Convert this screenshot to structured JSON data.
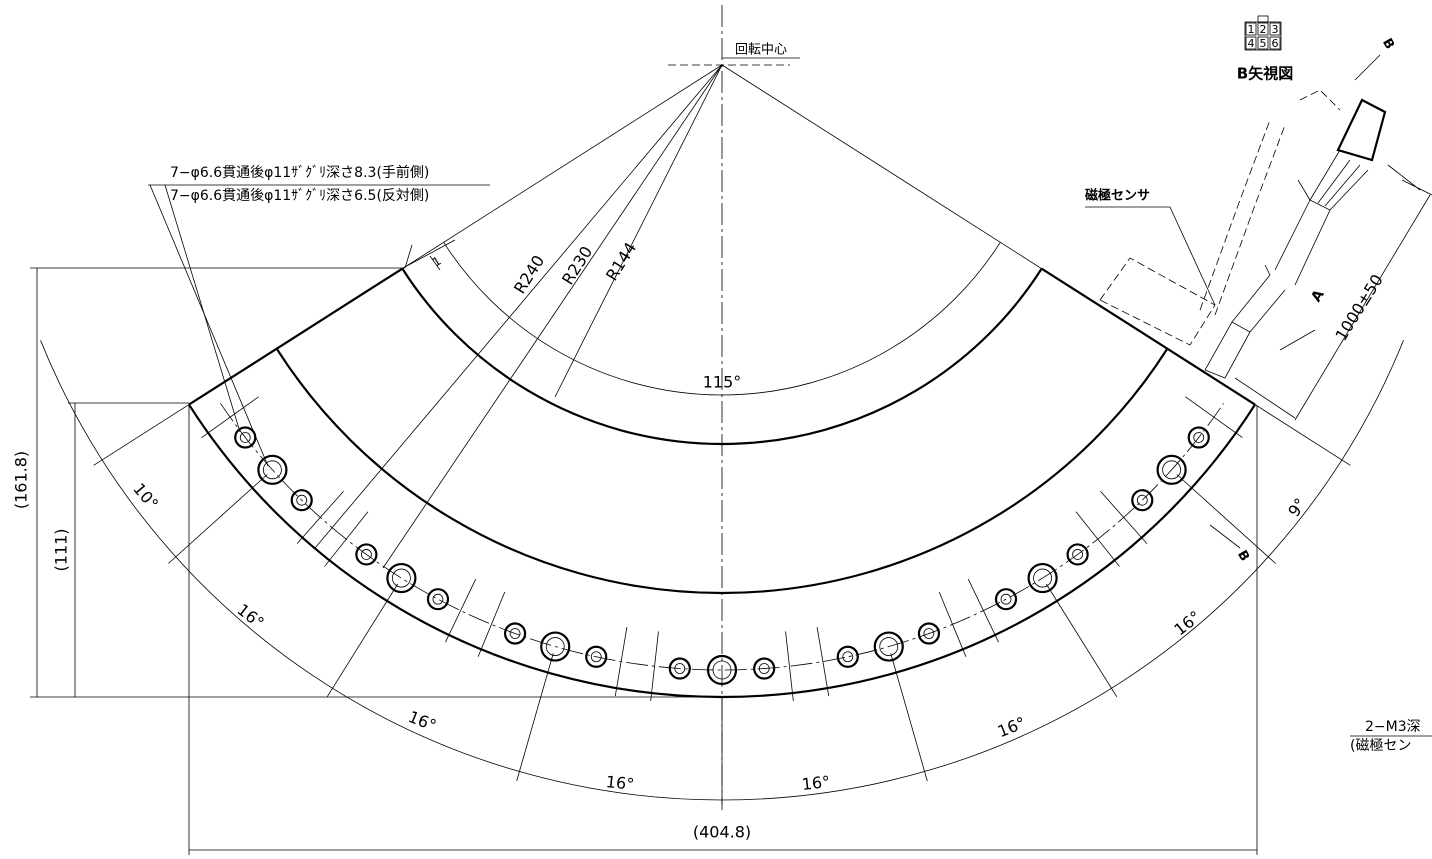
{
  "center_label": "回転中心",
  "hole_notes": [
    "7−φ6.6貫通後φ11ｻﾞｸﾞﾘ深さ8.3(手前側)",
    "7−φ6.6貫通後φ11ｻﾞｸﾞﾘ深さ6.5(反対側)"
  ],
  "radii": [
    "R240",
    "R230",
    "R144"
  ],
  "angles": {
    "span": "115°",
    "end_left": "10°",
    "end_right": "9°",
    "pitch": [
      "16°",
      "16°",
      "16°",
      "16°",
      "16°",
      "16°"
    ]
  },
  "dims": {
    "height_total": "(161.8)",
    "height_inner": "(111)",
    "width": "(404.8)",
    "cable_length": "1000±50"
  },
  "flatness": "1",
  "connector": {
    "pins": [
      "1",
      "2",
      "3",
      "4",
      "5",
      "6"
    ],
    "title": "B矢視図"
  },
  "sensor_label": "磁極センサ",
  "view_marks": [
    "A",
    "B",
    "B"
  ],
  "sensor_note": [
    "2−M3深",
    "(磁極セン"
  ]
}
